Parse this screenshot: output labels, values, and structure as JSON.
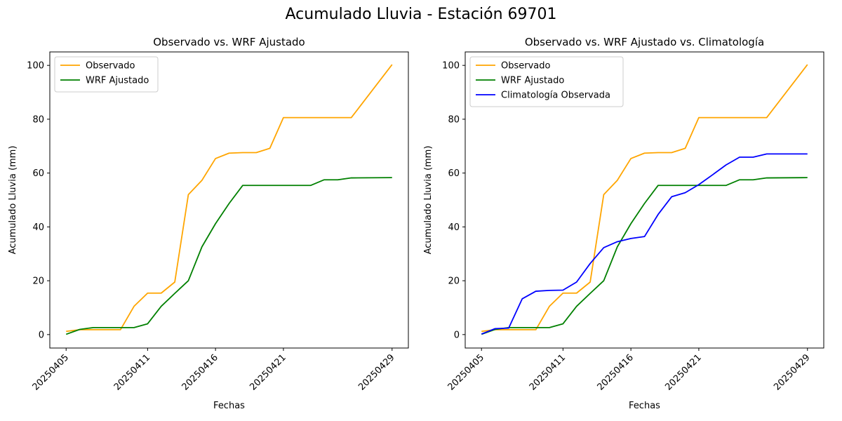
{
  "figure": {
    "suptitle": "Acumulado Lluvia - Estación 69701"
  },
  "colors": {
    "observado": "#ffa500",
    "wrf": "#008000",
    "climatologia": "#0000ff"
  },
  "chart_data": [
    {
      "type": "line",
      "title": "Observado vs. WRF Ajustado",
      "xlabel": "Fechas",
      "ylabel": "Acumulado Lluvia (mm)",
      "x_tick_labels": [
        "20250405",
        "20250411",
        "20250416",
        "20250421",
        "20250429"
      ],
      "x": [
        "20250405",
        "20250406",
        "20250407",
        "20250408",
        "20250409",
        "20250410",
        "20250411",
        "20250412",
        "20250413",
        "20250414",
        "20250415",
        "20250416",
        "20250417",
        "20250418",
        "20250419",
        "20250420",
        "20250421",
        "20250422",
        "20250423",
        "20250424",
        "20250425",
        "20250426",
        "20250429"
      ],
      "ylim": [
        -5,
        105
      ],
      "y_ticks": [
        0,
        20,
        40,
        60,
        80,
        100
      ],
      "legend": "top-left",
      "series": [
        {
          "name": "Observado",
          "color_key": "observado",
          "values": [
            1.2,
            1.8,
            1.8,
            1.8,
            1.8,
            10.5,
            15.4,
            15.4,
            19.5,
            52.0,
            57.3,
            65.4,
            67.4,
            67.6,
            67.6,
            69.2,
            80.6,
            80.6,
            80.6,
            80.6,
            80.6,
            80.6,
            100.3
          ]
        },
        {
          "name": "WRF Ajustado",
          "color_key": "wrf",
          "values": [
            0.1,
            1.9,
            2.6,
            2.6,
            2.6,
            2.6,
            4.0,
            10.5,
            15.3,
            20.0,
            32.6,
            41.2,
            48.7,
            55.4,
            55.4,
            55.4,
            55.4,
            55.4,
            55.4,
            57.5,
            57.5,
            58.2,
            58.3
          ]
        }
      ]
    },
    {
      "type": "line",
      "title": "Observado vs. WRF Ajustado vs. Climatología",
      "xlabel": "Fechas",
      "ylabel": "Acumulado Lluvia (mm)",
      "x_tick_labels": [
        "20250405",
        "20250411",
        "20250416",
        "20250421",
        "20250429"
      ],
      "x": [
        "20250405",
        "20250406",
        "20250407",
        "20250408",
        "20250409",
        "20250410",
        "20250411",
        "20250412",
        "20250413",
        "20250414",
        "20250415",
        "20250416",
        "20250417",
        "20250418",
        "20250419",
        "20250420",
        "20250421",
        "20250422",
        "20250423",
        "20250424",
        "20250425",
        "20250426",
        "20250429"
      ],
      "ylim": [
        -5,
        105
      ],
      "y_ticks": [
        0,
        20,
        40,
        60,
        80,
        100
      ],
      "legend": "top-left",
      "series": [
        {
          "name": "Observado",
          "color_key": "observado",
          "values": [
            1.2,
            1.8,
            1.8,
            1.8,
            1.8,
            10.5,
            15.4,
            15.4,
            19.5,
            52.0,
            57.3,
            65.4,
            67.4,
            67.6,
            67.6,
            69.2,
            80.6,
            80.6,
            80.6,
            80.6,
            80.6,
            80.6,
            100.3
          ]
        },
        {
          "name": "WRF Ajustado",
          "color_key": "wrf",
          "values": [
            0.1,
            1.9,
            2.6,
            2.6,
            2.6,
            2.6,
            4.0,
            10.5,
            15.3,
            20.0,
            32.6,
            41.2,
            48.7,
            55.4,
            55.4,
            55.4,
            55.4,
            55.4,
            55.4,
            57.5,
            57.5,
            58.2,
            58.3
          ]
        },
        {
          "name": "Climatología Observada",
          "color_key": "climatologia",
          "values": [
            0.2,
            2.2,
            2.4,
            13.3,
            16.1,
            16.4,
            16.5,
            19.5,
            26.4,
            32.3,
            34.5,
            35.7,
            36.4,
            44.6,
            51.2,
            52.7,
            55.7,
            59.3,
            63.0,
            65.9,
            65.9,
            67.1,
            67.1
          ]
        }
      ]
    }
  ]
}
